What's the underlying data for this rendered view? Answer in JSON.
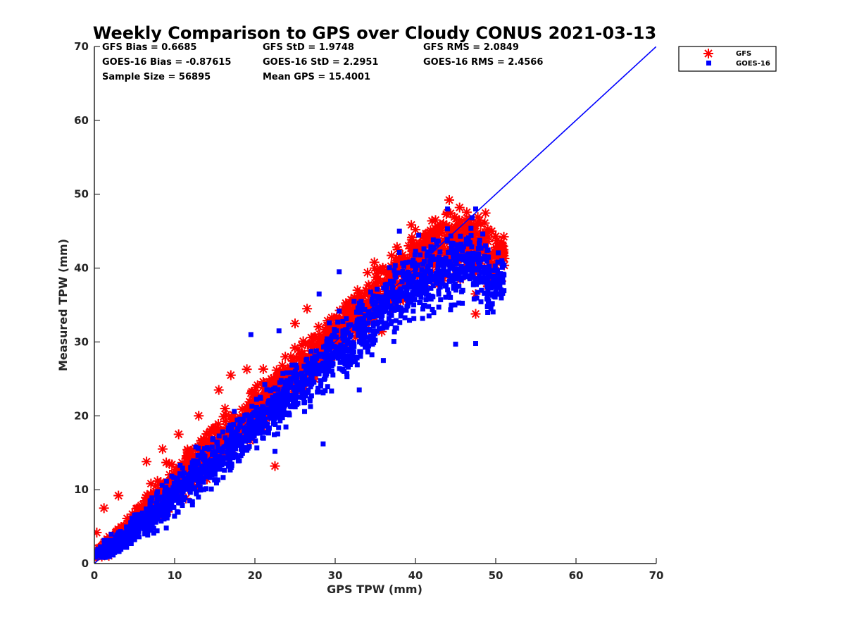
{
  "chart_data": {
    "type": "scatter",
    "title": "Weekly Comparison to GPS over Cloudy CONUS 2021-03-13",
    "xlabel": "GPS TPW (mm)",
    "ylabel": "Measured TPW (mm)",
    "xlim": [
      0,
      70
    ],
    "ylim": [
      0,
      70
    ],
    "xticks": [
      "0",
      "10",
      "20",
      "30",
      "40",
      "50",
      "60",
      "70"
    ],
    "yticks": [
      "0",
      "10",
      "20",
      "30",
      "40",
      "50",
      "60",
      "70"
    ],
    "grid": false,
    "legend_position": "top-right (outside plot)",
    "stats": [
      [
        "GFS Bias = 0.6685",
        "GFS StD = 1.9748",
        "GFS RMS = 2.0849"
      ],
      [
        "GOES-16 Bias = -0.87615",
        "GOES-16 StD = 2.2951",
        "GOES-16 RMS = 2.4566"
      ],
      [
        "Sample Size = 56895",
        "Mean GPS = 15.4001",
        ""
      ]
    ],
    "reference_line": {
      "x": [
        0,
        70
      ],
      "y": [
        0,
        70
      ],
      "color": "#0000ff"
    },
    "series": [
      {
        "name": "GFS",
        "marker": "asterisk",
        "color": "#ff0000",
        "point_cloud": {
          "bins": [
            [
              0.5,
              1.2,
              0.8
            ],
            [
              2,
              2.4,
              1.2
            ],
            [
              4,
              4.6,
              1.5
            ],
            [
              6,
              6.8,
              1.8
            ],
            [
              8,
              8.9,
              2.0
            ],
            [
              10,
              11.0,
              2.2
            ],
            [
              12,
              13.0,
              2.4
            ],
            [
              14,
              15.1,
              2.5
            ],
            [
              16,
              17.0,
              2.6
            ],
            [
              18,
              19.0,
              2.6
            ],
            [
              20,
              21.0,
              2.7
            ],
            [
              22,
              23.0,
              2.7
            ],
            [
              24,
              25.0,
              2.8
            ],
            [
              26,
              27.0,
              2.8
            ],
            [
              28,
              29.0,
              2.9
            ],
            [
              30,
              31.0,
              3.0
            ],
            [
              32,
              33.0,
              3.0
            ],
            [
              34,
              35.0,
              3.0
            ],
            [
              36,
              37.0,
              3.1
            ],
            [
              38,
              39.0,
              3.2
            ],
            [
              40,
              41.0,
              3.4
            ],
            [
              42,
              42.5,
              3.8
            ],
            [
              44,
              43.0,
              4.0
            ],
            [
              46,
              43.5,
              4.0
            ],
            [
              48,
              43.5,
              3.8
            ],
            [
              50,
              41.0,
              2.5
            ]
          ],
          "points_per_bin": 60
        },
        "outliers": [
          [
            0.3,
            4.2
          ],
          [
            1.2,
            7.5
          ],
          [
            3,
            9.2
          ],
          [
            6.5,
            13.8
          ],
          [
            8.5,
            15.5
          ],
          [
            10.5,
            17.5
          ],
          [
            13,
            20.0
          ],
          [
            15.5,
            23.5
          ],
          [
            17,
            25.5
          ],
          [
            19,
            26.3
          ],
          [
            22.5,
            13.2
          ],
          [
            26.5,
            34.5
          ],
          [
            25,
            32.5
          ],
          [
            40,
            45.2
          ],
          [
            42.5,
            46.5
          ],
          [
            43.5,
            46.0
          ],
          [
            45.5,
            48.2
          ],
          [
            44,
            47.5
          ],
          [
            47.5,
            33.8
          ],
          [
            48.5,
            38.5
          ],
          [
            49.5,
            45.0
          ],
          [
            50,
            42.8
          ],
          [
            49.5,
            38.2
          ],
          [
            47.5,
            36.5
          ],
          [
            45,
            44.5
          ],
          [
            46.5,
            43.5
          ],
          [
            44.5,
            45.5
          ]
        ]
      },
      {
        "name": "GOES-16",
        "marker": "square",
        "color": "#0000ff",
        "point_cloud": {
          "bins": [
            [
              0.5,
              1.5,
              0.8
            ],
            [
              2,
              2.2,
              1.2
            ],
            [
              4,
              3.8,
              1.5
            ],
            [
              6,
              5.6,
              1.8
            ],
            [
              8,
              7.4,
              2.1
            ],
            [
              10,
              9.3,
              2.3
            ],
            [
              12,
              11.2,
              2.5
            ],
            [
              14,
              13.0,
              2.6
            ],
            [
              16,
              15.0,
              2.7
            ],
            [
              18,
              17.0,
              2.8
            ],
            [
              20,
              18.9,
              2.9
            ],
            [
              22,
              20.8,
              3.0
            ],
            [
              24,
              22.7,
              3.1
            ],
            [
              26,
              24.6,
              3.2
            ],
            [
              28,
              26.6,
              3.3
            ],
            [
              30,
              28.5,
              3.4
            ],
            [
              32,
              30.5,
              3.5
            ],
            [
              34,
              32.4,
              3.6
            ],
            [
              36,
              34.3,
              3.7
            ],
            [
              38,
              36.2,
              3.8
            ],
            [
              40,
              37.8,
              4.0
            ],
            [
              42,
              39.0,
              4.2
            ],
            [
              44,
              40.0,
              4.3
            ],
            [
              46,
              40.5,
              4.2
            ],
            [
              48,
              40.0,
              3.8
            ],
            [
              50,
              38.0,
              2.5
            ]
          ],
          "points_per_bin": 80
        },
        "outliers": [
          [
            19.5,
            31.0
          ],
          [
            23,
            31.5
          ],
          [
            28,
            36.5
          ],
          [
            30.5,
            39.5
          ],
          [
            38,
            45.0
          ],
          [
            44,
            48.0
          ],
          [
            47.5,
            48.0
          ],
          [
            45,
            29.7
          ],
          [
            47.5,
            29.8
          ],
          [
            36,
            27.5
          ],
          [
            22.5,
            15.2
          ],
          [
            28.5,
            16.2
          ],
          [
            49,
            34.0
          ],
          [
            50,
            36.8
          ],
          [
            27,
            25.5
          ],
          [
            33,
            23.5
          ]
        ]
      }
    ]
  }
}
